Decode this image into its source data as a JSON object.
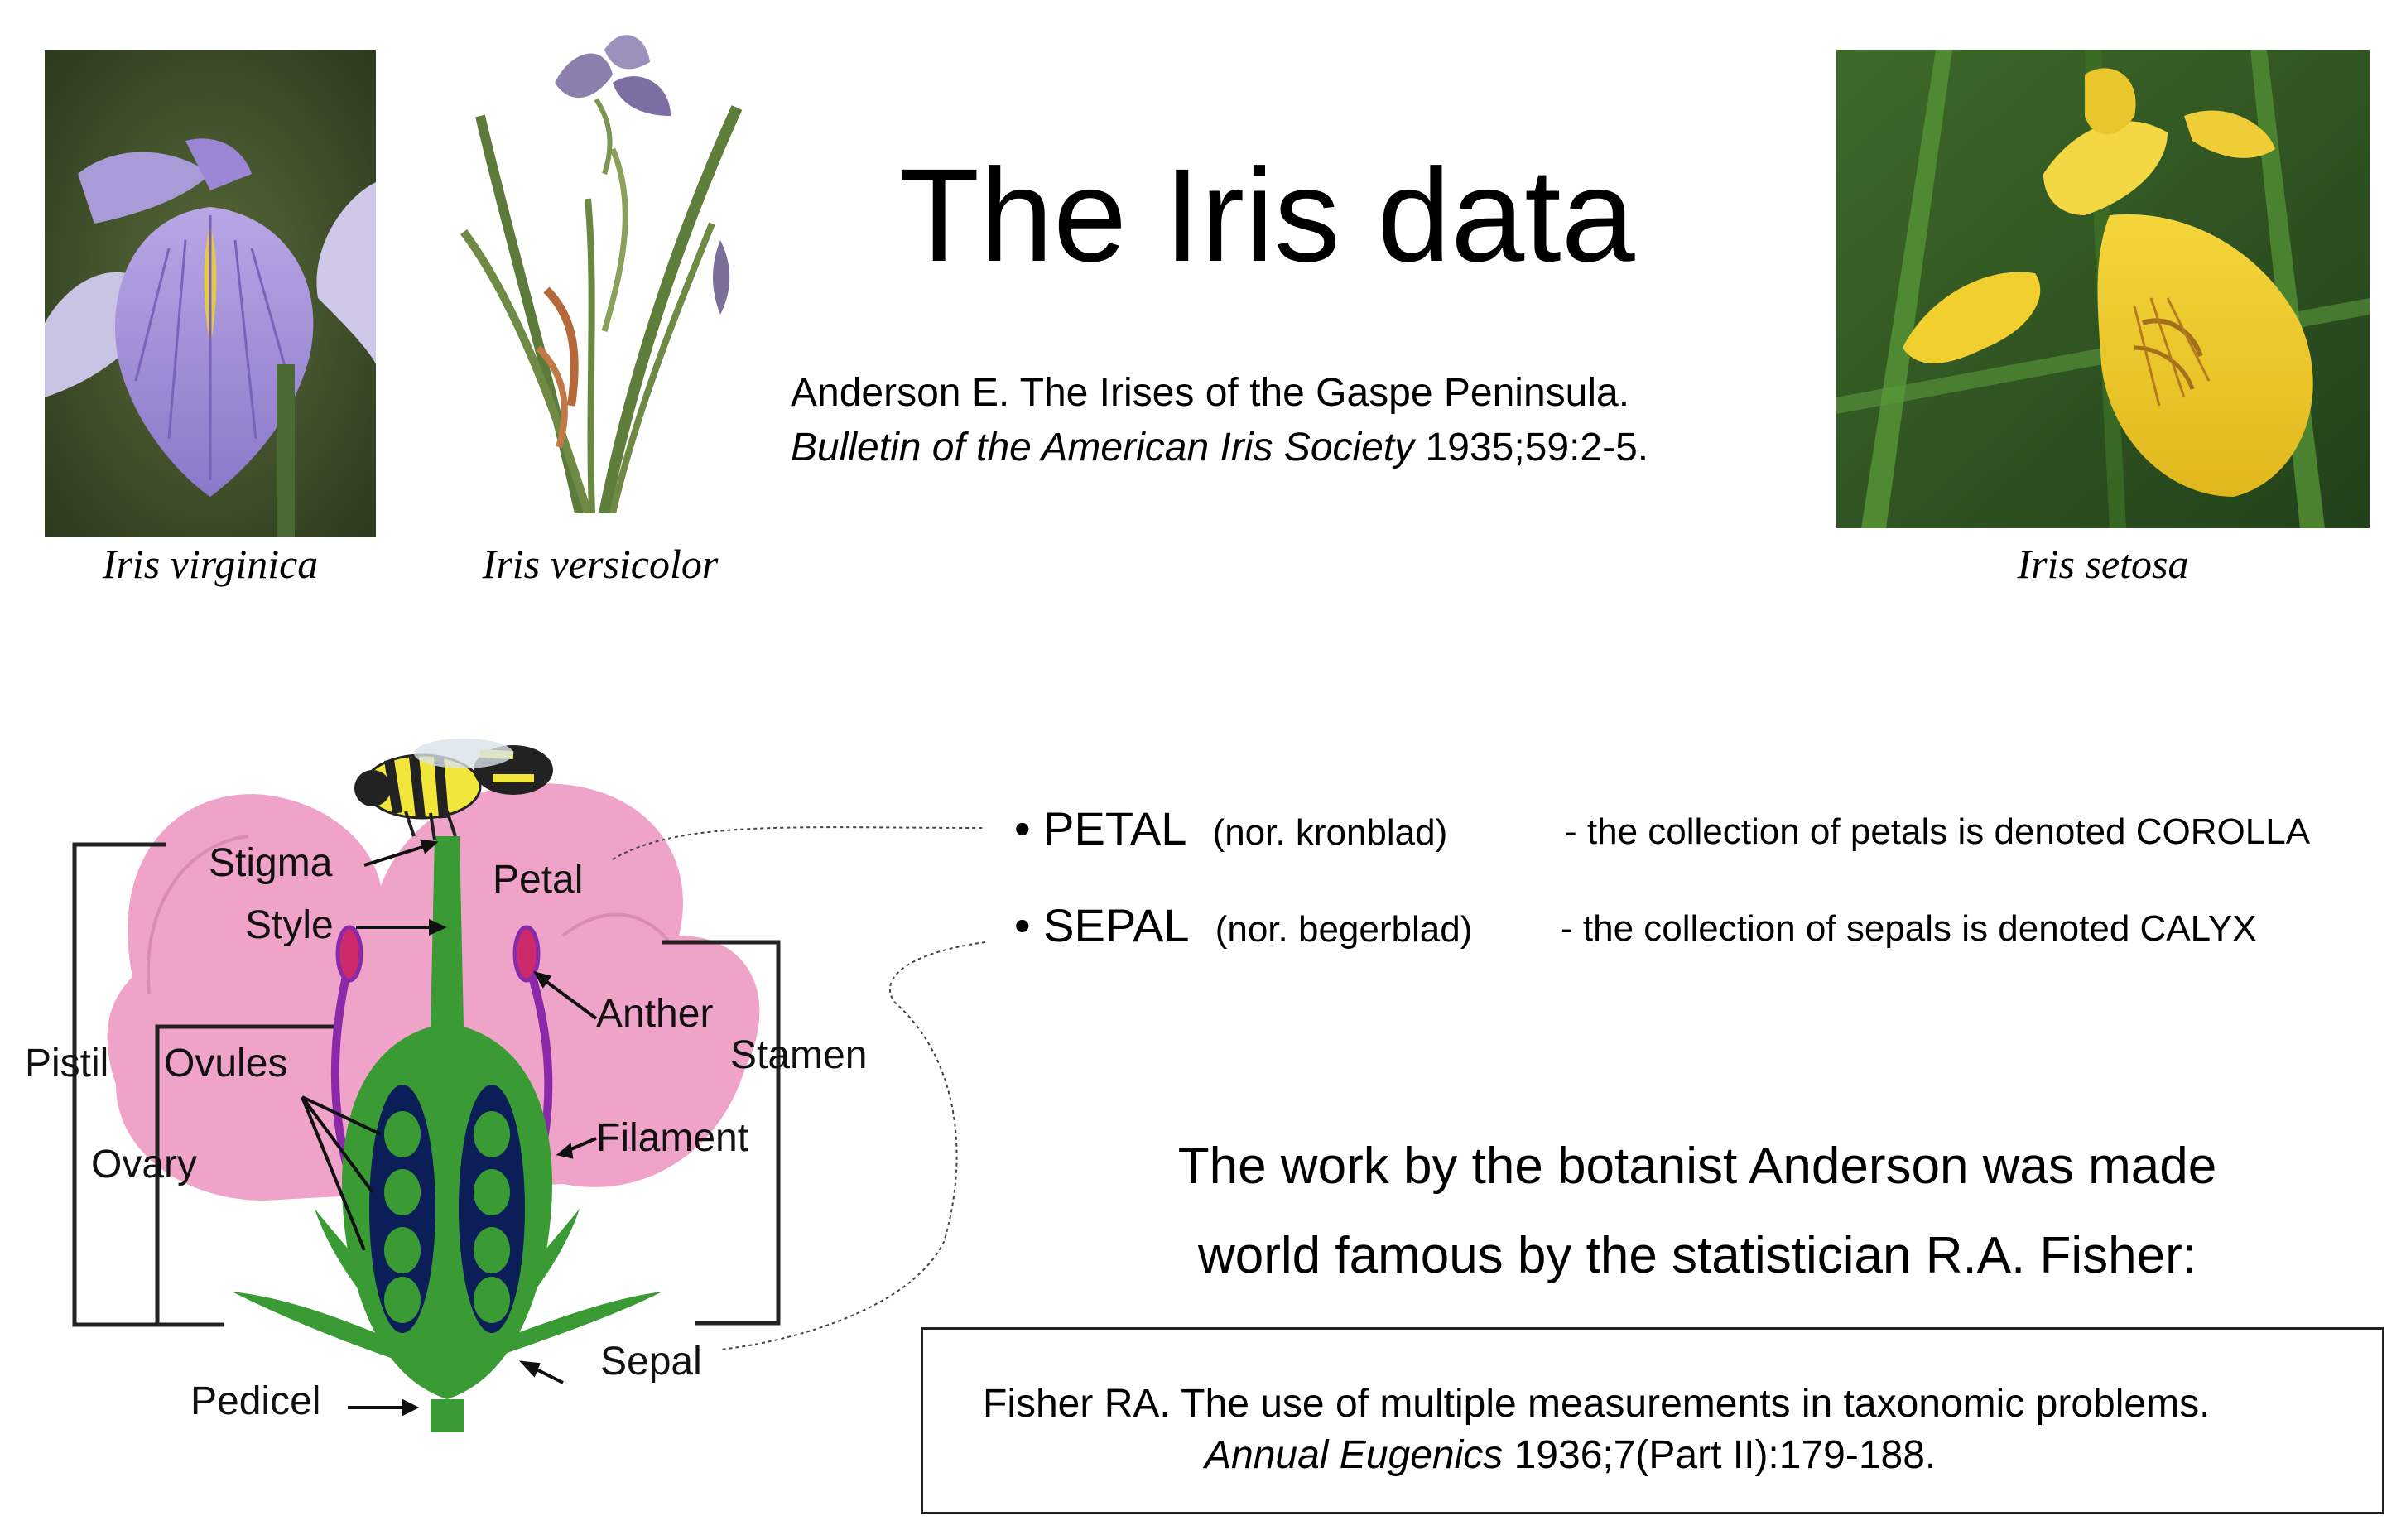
{
  "title": "The Iris data",
  "reference_anderson": {
    "line1": "Anderson E. The Irises of the Gaspe Peninsula.",
    "journal": "Bulletin of the American Iris Society",
    "details": " 1935;59:2-5."
  },
  "photos": [
    {
      "caption": "Iris virginica",
      "icon": "iris-virginica-photo"
    },
    {
      "caption": "Iris versicolor",
      "icon": "iris-versicolor-illustration"
    },
    {
      "caption": "Iris setosa",
      "icon": "iris-setosa-photo"
    }
  ],
  "bullets": [
    {
      "term": "PETAL",
      "norwegian": "(nor. kronblad)",
      "description": "- the collection of petals is denoted COROLLA"
    },
    {
      "term": "SEPAL",
      "norwegian": "(nor. begerblad)",
      "description": "- the collection of sepals is denoted CALYX"
    }
  ],
  "note": {
    "line1": "The work by the botanist Anderson was made",
    "line2": "world famous by the statistician R.A. Fisher:"
  },
  "reference_fisher": {
    "line1": "Fisher RA. The use of multiple measurements in taxonomic problems.",
    "journal": "Annual Eugenics",
    "details": " 1936;7(Part II):179-188."
  },
  "flower_diagram": {
    "labels": {
      "stigma": "Stigma",
      "style": "Style",
      "petal": "Petal",
      "anther": "Anther",
      "stamen": "Stamen",
      "pistil": "Pistil",
      "ovules": "Ovules",
      "ovary": "Ovary",
      "filament": "Filament",
      "sepal": "Sepal",
      "pedicel": "Pedicel"
    },
    "colors": {
      "petal": "#f0a3c8",
      "stem": "#3a9b35",
      "ovary": "#0b1e57",
      "stamen": "#8a2aa8"
    }
  }
}
